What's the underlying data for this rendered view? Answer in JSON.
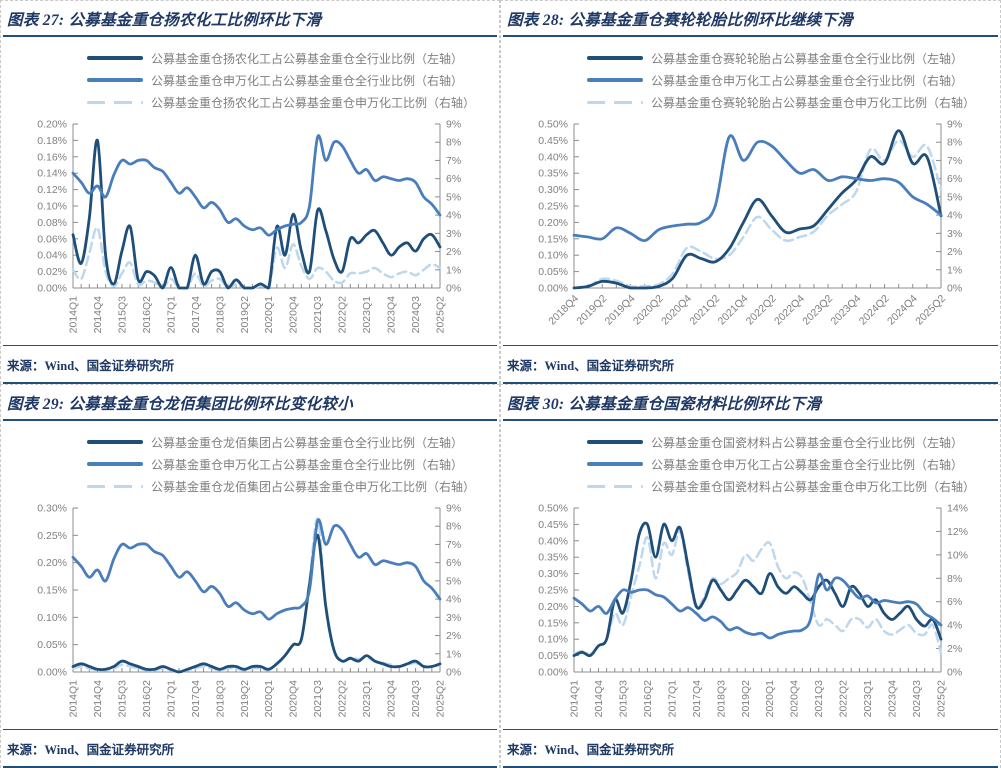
{
  "colors": {
    "c-bg": "#FFFFFF",
    "c-title": "#1F3864",
    "c-rule": "#1F4E79",
    "c-axis-text": "#808080",
    "c-axis-line": "#8C8C8C",
    "c-legend": "#7F7F7F",
    "c-border": "#C9C9C9"
  },
  "panels": [
    {
      "title": "图表 27: 公募基金重仓扬农化工比例环比下滑",
      "legend": [
        {
          "label": "公募基金重仓扬农化工占公募基金重仓全行业比例（左轴）"
        },
        {
          "label": "公募基金重仓申万化工占公募基金重仓全行业比例（右轴）"
        },
        {
          "label": "公募基金重仓扬农化工占公募基金重仓申万化工比例（右轴）"
        }
      ],
      "source": "来源：Wind、国金证券研究所"
    },
    {
      "title": "图表 28: 公募基金重仓赛轮轮胎比例环比继续下滑",
      "legend": [
        {
          "label": "公募基金重仓赛轮轮胎占公募基金重仓全行业比例（左轴）"
        },
        {
          "label": "公募基金重仓申万化工占公募基金重仓全行业比例（右轴）"
        },
        {
          "label": "公募基金重仓赛轮轮胎占公募基金重仓申万化工比例（右轴）"
        }
      ],
      "source": "来源：Wind、国金证券研究所"
    },
    {
      "title": "图表 29: 公募基金重仓龙佰集团比例环比变化较小",
      "legend": [
        {
          "label": "公募基金重仓龙佰集团占公募基金重仓全行业比例（左轴）"
        },
        {
          "label": "公募基金重仓申万化工占公募基金重仓全行业比例（右轴）"
        },
        {
          "label": "公募基金重仓龙佰集团占公募基金重仓申万化工比例（右轴）"
        }
      ],
      "source": "来源：Wind、国金证券研究所"
    },
    {
      "title": "图表 30: 公募基金重仓国瓷材料比例环比下滑",
      "legend": [
        {
          "label": "公募基金重仓国瓷材料占公募基金重仓全行业比例（左轴）"
        },
        {
          "label": "公募基金重仓申万化工占公募基金重仓全行业比例（右轴）"
        },
        {
          "label": "公募基金重仓国瓷材料占公募基金重仓申万化工比例（右轴）"
        }
      ],
      "source": "来源：Wind、国金证券研究所"
    }
  ],
  "chart_data": [
    {
      "type": "line",
      "title": "公募基金重仓扬农化工比例环比下滑",
      "xlabel": "",
      "ylabel": "",
      "grid": false,
      "legend_position": "top-left",
      "x_label_every": 3,
      "x_label_rotate": -90,
      "left_axis": {
        "min": 0,
        "max": 0.2,
        "step": 0.02,
        "decimals": 2,
        "suffix": "%"
      },
      "right_axis": {
        "min": 0,
        "max": 9,
        "step": 1,
        "decimals": 0,
        "suffix": "%"
      },
      "categories": [
        "2014Q1",
        "2014Q2",
        "2014Q3",
        "2014Q4",
        "2015Q1",
        "2015Q2",
        "2015Q3",
        "2015Q4",
        "2016Q1",
        "2016Q2",
        "2016Q3",
        "2016Q4",
        "2017Q1",
        "2017Q2",
        "2017Q3",
        "2017Q4",
        "2018Q1",
        "2018Q2",
        "2018Q3",
        "2018Q4",
        "2019Q1",
        "2019Q2",
        "2019Q3",
        "2019Q4",
        "2020Q1",
        "2020Q2",
        "2020Q3",
        "2020Q4",
        "2021Q1",
        "2021Q2",
        "2021Q3",
        "2021Q4",
        "2022Q1",
        "2022Q2",
        "2022Q3",
        "2022Q4",
        "2023Q1",
        "2023Q2",
        "2023Q3",
        "2023Q4",
        "2024Q1",
        "2024Q2",
        "2024Q3",
        "2024Q4",
        "2025Q1",
        "2025Q2"
      ],
      "series": [
        {
          "name": "公募基金重仓扬农化工占公募基金重仓全行业比例（左轴）",
          "axis": "left",
          "color": "#1F4E79",
          "width": 2.8,
          "dash": null,
          "values": [
            0.065,
            0.03,
            0.085,
            0.18,
            0.04,
            0.005,
            0.045,
            0.075,
            0.01,
            0.02,
            0.015,
            0.0,
            0.025,
            0.0,
            0.0,
            0.04,
            0.005,
            0.02,
            0.02,
            0.0,
            0.01,
            0.0,
            0.0,
            0.005,
            0.0,
            0.075,
            0.04,
            0.09,
            0.045,
            0.02,
            0.095,
            0.07,
            0.035,
            0.02,
            0.06,
            0.055,
            0.065,
            0.07,
            0.055,
            0.04,
            0.05,
            0.055,
            0.045,
            0.06,
            0.065,
            0.05
          ]
        },
        {
          "name": "公募基金重仓申万化工占公募基金重仓全行业比例（右轴）",
          "axis": "right",
          "color": "#4A7EBB",
          "width": 2.8,
          "dash": null,
          "values": [
            6.3,
            5.8,
            5.2,
            5.6,
            5.0,
            6.2,
            7.0,
            6.8,
            7.0,
            7.0,
            6.6,
            6.4,
            5.8,
            5.2,
            5.5,
            5.0,
            4.4,
            4.7,
            4.3,
            3.6,
            3.8,
            3.4,
            3.2,
            3.3,
            2.9,
            3.2,
            3.4,
            3.5,
            3.6,
            4.5,
            8.3,
            7.0,
            8.0,
            7.8,
            7.0,
            6.3,
            6.5,
            5.9,
            6.1,
            6.0,
            5.9,
            6.0,
            5.8,
            5.0,
            4.6,
            4.0
          ]
        },
        {
          "name": "公募基金重仓扬农化工占公募基金重仓申万化工比例（右轴）",
          "axis": "right",
          "color": "#BDD7EE",
          "width": 2.5,
          "dash": "9 5",
          "values": [
            1.0,
            0.5,
            1.9,
            3.3,
            0.9,
            0.1,
            0.8,
            1.4,
            0.2,
            0.4,
            0.3,
            0.0,
            0.5,
            0.0,
            0.0,
            0.8,
            0.1,
            0.4,
            0.5,
            0.0,
            0.2,
            0.0,
            0.0,
            0.1,
            0.0,
            2.2,
            1.1,
            2.4,
            1.2,
            0.5,
            1.1,
            0.9,
            0.4,
            0.3,
            0.8,
            0.8,
            0.9,
            1.1,
            0.8,
            0.6,
            0.8,
            0.9,
            0.7,
            1.0,
            1.3,
            1.1
          ]
        }
      ]
    },
    {
      "type": "line",
      "title": "公募基金重仓赛轮轮胎比例环比继续下滑",
      "xlabel": "",
      "ylabel": "",
      "grid": false,
      "legend_position": "top-left",
      "x_label_every": 2,
      "x_label_rotate": -45,
      "left_axis": {
        "min": 0,
        "max": 0.5,
        "step": 0.05,
        "decimals": 2,
        "suffix": "%"
      },
      "right_axis": {
        "min": 0,
        "max": 9,
        "step": 1,
        "decimals": 0,
        "suffix": "%"
      },
      "categories": [
        "2018Q4",
        "2019Q1",
        "2019Q2",
        "2019Q3",
        "2019Q4",
        "2020Q1",
        "2020Q2",
        "2020Q3",
        "2020Q4",
        "2021Q1",
        "2021Q2",
        "2021Q3",
        "2021Q4",
        "2022Q1",
        "2022Q2",
        "2022Q3",
        "2022Q4",
        "2023Q1",
        "2023Q2",
        "2023Q3",
        "2023Q4",
        "2024Q1",
        "2024Q2",
        "2024Q3",
        "2024Q4",
        "2025Q1",
        "2025Q2"
      ],
      "series": [
        {
          "name": "公募基金重仓赛轮轮胎占公募基金重仓全行业比例（左轴）",
          "axis": "left",
          "color": "#1F4E79",
          "width": 2.8,
          "dash": null,
          "values": [
            0.0,
            0.005,
            0.02,
            0.015,
            0.0,
            0.0,
            0.005,
            0.03,
            0.1,
            0.09,
            0.08,
            0.12,
            0.2,
            0.27,
            0.22,
            0.17,
            0.18,
            0.19,
            0.24,
            0.29,
            0.33,
            0.4,
            0.38,
            0.48,
            0.38,
            0.4,
            0.22
          ]
        },
        {
          "name": "公募基金重仓申万化工占公募基金重仓全行业比例（右轴）",
          "axis": "right",
          "color": "#4A7EBB",
          "width": 2.8,
          "dash": null,
          "values": [
            2.9,
            2.8,
            2.7,
            3.3,
            3.0,
            2.6,
            3.2,
            3.4,
            3.5,
            3.6,
            4.5,
            8.3,
            7.0,
            8.0,
            7.8,
            7.0,
            6.3,
            6.5,
            5.9,
            6.1,
            6.0,
            5.9,
            6.0,
            5.8,
            5.0,
            4.6,
            4.0
          ]
        },
        {
          "name": "公募基金重仓赛轮轮胎占公募基金重仓申万化工比例（右轴）",
          "axis": "right",
          "color": "#BDD7EE",
          "width": 2.5,
          "dash": "9 5",
          "values": [
            0.0,
            0.1,
            0.5,
            0.4,
            0.1,
            0.1,
            0.2,
            0.8,
            2.2,
            2.0,
            1.6,
            1.8,
            2.8,
            3.9,
            3.2,
            2.6,
            2.8,
            3.1,
            4.0,
            4.6,
            5.3,
            7.6,
            7.0,
            8.1,
            7.2,
            7.8,
            5.4
          ]
        }
      ]
    },
    {
      "type": "line",
      "title": "公募基金重仓龙佰集团比例环比变化较小",
      "xlabel": "",
      "ylabel": "",
      "grid": false,
      "legend_position": "top-left",
      "x_label_every": 3,
      "x_label_rotate": -90,
      "left_axis": {
        "min": 0,
        "max": 0.3,
        "step": 0.05,
        "decimals": 2,
        "suffix": "%"
      },
      "right_axis": {
        "min": 0,
        "max": 9,
        "step": 1,
        "decimals": 0,
        "suffix": "%"
      },
      "categories": [
        "2014Q1",
        "2014Q2",
        "2014Q3",
        "2014Q4",
        "2015Q1",
        "2015Q2",
        "2015Q3",
        "2015Q4",
        "2016Q1",
        "2016Q2",
        "2016Q3",
        "2016Q4",
        "2017Q1",
        "2017Q2",
        "2017Q3",
        "2017Q4",
        "2018Q1",
        "2018Q2",
        "2018Q3",
        "2018Q4",
        "2019Q1",
        "2019Q2",
        "2019Q3",
        "2019Q4",
        "2020Q1",
        "2020Q2",
        "2020Q3",
        "2020Q4",
        "2021Q1",
        "2021Q2",
        "2021Q3",
        "2021Q4",
        "2022Q1",
        "2022Q2",
        "2022Q3",
        "2022Q4",
        "2023Q1",
        "2023Q2",
        "2023Q3",
        "2023Q4",
        "2024Q1",
        "2024Q2",
        "2024Q3",
        "2024Q4",
        "2025Q1",
        "2025Q2"
      ],
      "series": [
        {
          "name": "公募基金重仓龙佰集团占公募基金重仓全行业比例（左轴）",
          "axis": "left",
          "color": "#1F4E79",
          "width": 2.8,
          "dash": null,
          "values": [
            0.01,
            0.015,
            0.01,
            0.005,
            0.005,
            0.01,
            0.02,
            0.015,
            0.01,
            0.005,
            0.005,
            0.01,
            0.005,
            0.0,
            0.005,
            0.01,
            0.015,
            0.01,
            0.005,
            0.01,
            0.01,
            0.005,
            0.01,
            0.01,
            0.005,
            0.015,
            0.03,
            0.05,
            0.06,
            0.16,
            0.25,
            0.12,
            0.04,
            0.02,
            0.025,
            0.02,
            0.03,
            0.02,
            0.015,
            0.01,
            0.01,
            0.015,
            0.02,
            0.01,
            0.01,
            0.015
          ]
        },
        {
          "name": "公募基金重仓申万化工占公募基金重仓全行业比例（右轴）",
          "axis": "right",
          "color": "#4A7EBB",
          "width": 2.8,
          "dash": null,
          "values": [
            6.3,
            5.8,
            5.2,
            5.6,
            5.0,
            6.2,
            7.0,
            6.8,
            7.0,
            7.0,
            6.6,
            6.4,
            5.8,
            5.2,
            5.5,
            5.0,
            4.4,
            4.7,
            4.3,
            3.6,
            3.8,
            3.4,
            3.2,
            3.3,
            2.9,
            3.2,
            3.4,
            3.5,
            3.6,
            4.5,
            8.3,
            7.0,
            8.0,
            7.8,
            7.0,
            6.3,
            6.5,
            5.9,
            6.1,
            6.0,
            5.9,
            6.0,
            5.8,
            5.0,
            4.6,
            4.0
          ]
        },
        {
          "name": "公募基金重仓龙佰集团占公募基金重仓申万化工比例（右轴）",
          "axis": "right",
          "color": "#BDD7EE",
          "width": 2.5,
          "dash": "9 5",
          "values": [
            0.2,
            0.3,
            0.2,
            0.1,
            0.1,
            0.2,
            0.4,
            0.3,
            0.2,
            0.1,
            0.1,
            0.2,
            0.1,
            0.0,
            0.1,
            0.2,
            0.3,
            0.2,
            0.1,
            0.2,
            0.2,
            0.1,
            0.2,
            0.2,
            0.1,
            0.5,
            0.9,
            1.5,
            1.8,
            5.0,
            8.4,
            3.5,
            1.2,
            0.6,
            0.8,
            0.7,
            0.8,
            0.6,
            0.5,
            0.4,
            0.3,
            0.4,
            0.5,
            0.3,
            0.3,
            0.4
          ]
        }
      ]
    },
    {
      "type": "line",
      "title": "公募基金重仓国瓷材料比例环比下滑",
      "xlabel": "",
      "ylabel": "",
      "grid": false,
      "legend_position": "top-left",
      "x_label_every": 3,
      "x_label_rotate": -90,
      "left_axis": {
        "min": 0,
        "max": 0.5,
        "step": 0.05,
        "decimals": 2,
        "suffix": "%"
      },
      "right_axis": {
        "min": 0,
        "max": 14,
        "step": 2,
        "decimals": 0,
        "suffix": "%"
      },
      "categories": [
        "2014Q1",
        "2014Q2",
        "2014Q3",
        "2014Q4",
        "2015Q1",
        "2015Q2",
        "2015Q3",
        "2015Q4",
        "2016Q1",
        "2016Q2",
        "2016Q3",
        "2016Q4",
        "2017Q1",
        "2017Q2",
        "2017Q3",
        "2017Q4",
        "2018Q1",
        "2018Q2",
        "2018Q3",
        "2018Q4",
        "2019Q1",
        "2019Q2",
        "2019Q3",
        "2019Q4",
        "2020Q1",
        "2020Q2",
        "2020Q3",
        "2020Q4",
        "2021Q1",
        "2021Q2",
        "2021Q3",
        "2021Q4",
        "2022Q1",
        "2022Q2",
        "2022Q3",
        "2022Q4",
        "2023Q1",
        "2023Q2",
        "2023Q3",
        "2023Q4",
        "2024Q1",
        "2024Q2",
        "2024Q3",
        "2024Q4",
        "2025Q1",
        "2025Q2"
      ],
      "series": [
        {
          "name": "公募基金重仓国瓷材料占公募基金重仓全行业比例（左轴）",
          "axis": "left",
          "color": "#1F4E79",
          "width": 2.8,
          "dash": null,
          "values": [
            0.05,
            0.06,
            0.05,
            0.08,
            0.1,
            0.22,
            0.18,
            0.28,
            0.42,
            0.45,
            0.35,
            0.45,
            0.4,
            0.44,
            0.32,
            0.2,
            0.22,
            0.28,
            0.25,
            0.22,
            0.25,
            0.28,
            0.26,
            0.24,
            0.3,
            0.26,
            0.24,
            0.26,
            0.24,
            0.22,
            0.26,
            0.28,
            0.24,
            0.2,
            0.26,
            0.24,
            0.2,
            0.22,
            0.18,
            0.16,
            0.18,
            0.2,
            0.16,
            0.14,
            0.16,
            0.1
          ]
        },
        {
          "name": "公募基金重仓申万化工占公募基金重仓全行业比例（右轴）",
          "axis": "right",
          "color": "#4A7EBB",
          "width": 2.8,
          "dash": null,
          "values": [
            6.3,
            5.8,
            5.2,
            5.6,
            5.0,
            6.2,
            7.0,
            6.8,
            7.0,
            7.0,
            6.6,
            6.4,
            5.8,
            5.2,
            5.5,
            5.0,
            4.4,
            4.7,
            4.3,
            3.6,
            3.8,
            3.4,
            3.2,
            3.3,
            2.9,
            3.2,
            3.4,
            3.5,
            3.6,
            4.5,
            8.3,
            7.0,
            8.0,
            7.8,
            7.0,
            6.3,
            6.5,
            5.9,
            6.1,
            6.0,
            5.9,
            6.0,
            5.8,
            5.0,
            4.6,
            4.0
          ]
        },
        {
          "name": "公募基金重仓国瓷材料占公募基金重仓申万化工比例（右轴）",
          "axis": "right",
          "color": "#BDD7EE",
          "width": 2.5,
          "dash": "9 5",
          "values": [
            1.5,
            1.8,
            1.5,
            2.2,
            2.8,
            5.0,
            4.0,
            6.5,
            9.0,
            11.5,
            8.0,
            11.0,
            10.0,
            12.0,
            8.5,
            5.5,
            6.5,
            8.0,
            7.5,
            8.0,
            8.5,
            10.0,
            9.5,
            10.5,
            11.0,
            9.0,
            8.0,
            8.5,
            8.0,
            6.0,
            4.0,
            4.5,
            4.0,
            3.5,
            4.5,
            4.5,
            3.8,
            4.5,
            3.5,
            3.2,
            3.6,
            4.0,
            3.3,
            3.2,
            4.0,
            1.6
          ]
        }
      ]
    }
  ]
}
